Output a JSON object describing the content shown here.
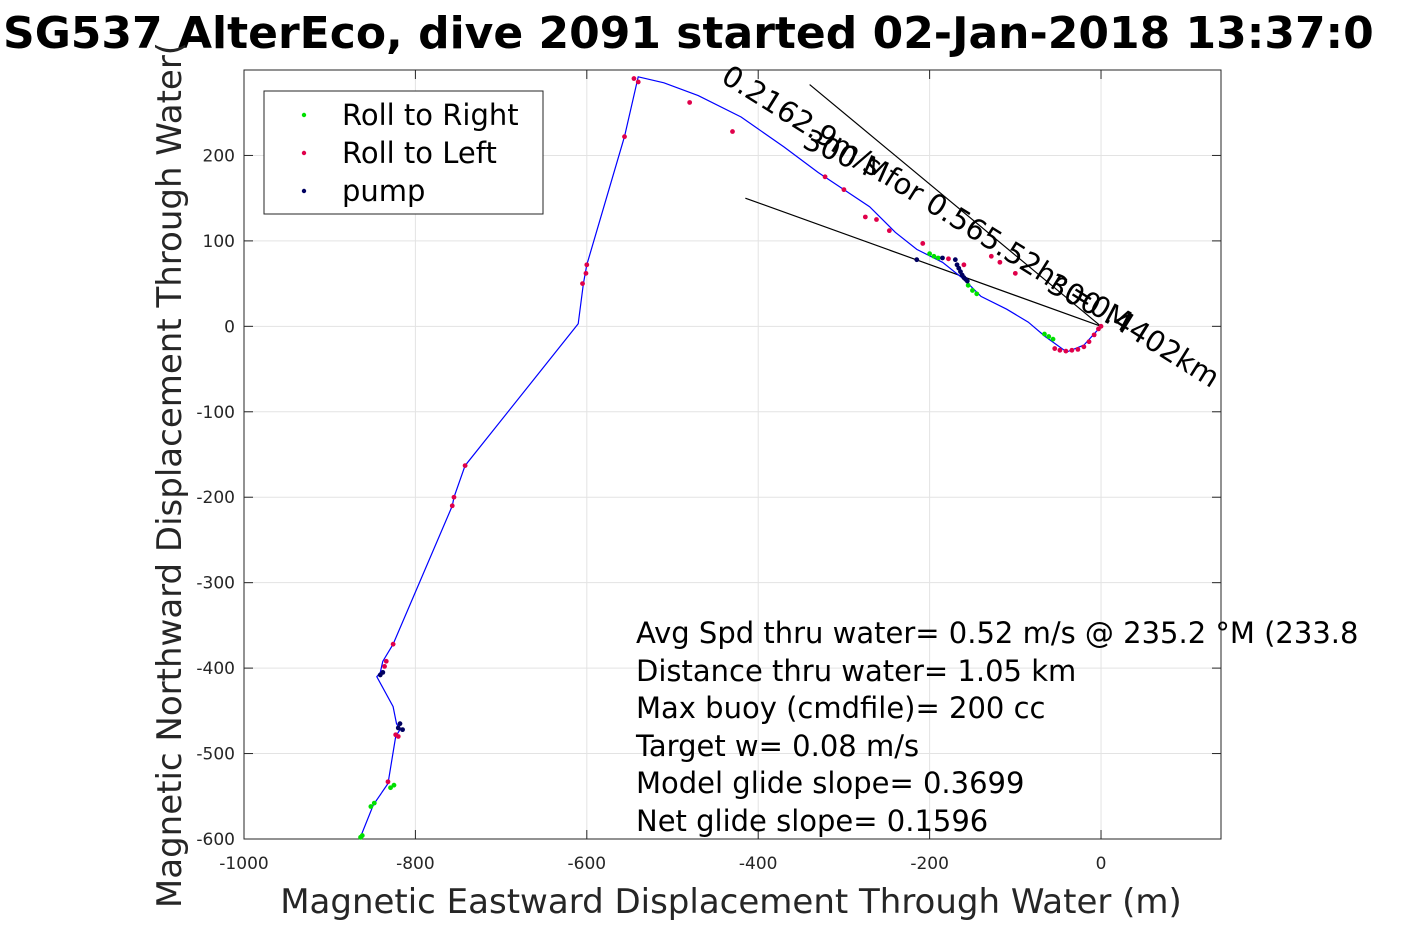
{
  "chart_data": {
    "type": "scatter",
    "title": "SG537 AlterEco, dive 2091 started 02-Jan-2018 13:37:0",
    "xlabel": "Magnetic Eastward Displacement Through Water (m)",
    "ylabel": "Magnetic Northward Displacement Through Water(",
    "xlim": [
      -1000,
      140
    ],
    "ylim": [
      -600,
      300
    ],
    "xticks": [
      -1000,
      -800,
      -600,
      -400,
      -200,
      0
    ],
    "yticks": [
      -600,
      -500,
      -400,
      -300,
      -200,
      -100,
      0,
      100,
      200
    ],
    "grid": true,
    "legend_position": "top-left",
    "legend": [
      "Roll to Right",
      "Roll to Left",
      "pump"
    ],
    "colors": {
      "track": "#0000ff",
      "roll_right": "#00e000",
      "roll_left": "#e0004a",
      "pump": "#000060"
    },
    "track": {
      "x": [
        0,
        -20,
        -40,
        -65,
        -85,
        -110,
        -140,
        -160,
        -185,
        -215,
        -240,
        -270,
        -300,
        -330,
        -370,
        -420,
        -470,
        -510,
        -540,
        -556,
        -600,
        -604,
        -610,
        -742,
        -755,
        -757,
        -826,
        -838,
        -841,
        -845,
        -826,
        -822,
        -818,
        -823,
        -832,
        -849,
        -865
      ],
      "y": [
        0,
        -22,
        -30,
        -12,
        5,
        20,
        35,
        55,
        75,
        90,
        110,
        140,
        160,
        180,
        210,
        245,
        270,
        285,
        292,
        222,
        72,
        50,
        3,
        -163,
        -200,
        -210,
        -372,
        -392,
        -405,
        -410,
        -445,
        -465,
        -472,
        -480,
        -535,
        -560,
        -600
      ]
    },
    "series": [
      {
        "name": "Roll to Right",
        "x": [
          -66,
          -61,
          -56,
          -155,
          -150,
          -145,
          -200,
          -195,
          -190,
          -825,
          -829,
          -848,
          -852,
          -862,
          -864
        ],
        "y": [
          -9,
          -12,
          -15,
          48,
          42,
          38,
          85,
          82,
          80,
          -537,
          -540,
          -558,
          -562,
          -596,
          -598
        ]
      },
      {
        "name": "Roll to Left",
        "x": [
          0,
          -3,
          -8,
          -14,
          -20,
          -27,
          -34,
          -41,
          -48,
          -54,
          -100,
          -118,
          -128,
          -160,
          -178,
          -208,
          -247,
          -262,
          -275,
          -300,
          -322,
          -430,
          -480,
          -540,
          -545,
          -556,
          -600,
          -601,
          -605,
          -742,
          -755,
          -757,
          -826,
          -834,
          -836,
          -820,
          -823,
          -832
        ],
        "y": [
          0,
          -3,
          -10,
          -18,
          -24,
          -27,
          -28,
          -29,
          -28,
          -26,
          62,
          75,
          82,
          72,
          79,
          97,
          112,
          125,
          128,
          160,
          175,
          228,
          262,
          286,
          290,
          222,
          72,
          62,
          50,
          -163,
          -200,
          -210,
          -372,
          -392,
          -398,
          -480,
          -478,
          -533
        ]
      },
      {
        "name": "pump",
        "x": [
          -170,
          -168,
          -166,
          -164,
          -162,
          -160,
          -158,
          -156,
          -185,
          -215,
          -838,
          -841,
          -818,
          -815,
          -820
        ],
        "y": [
          78,
          72,
          68,
          64,
          60,
          57,
          55,
          53,
          80,
          78,
          -405,
          -408,
          -465,
          -472,
          -470
        ]
      }
    ],
    "reference_lines": [
      {
        "x": [
          0,
          -340
        ],
        "y": [
          0,
          283
        ]
      },
      {
        "x": [
          0,
          -415
        ],
        "y": [
          0,
          150
        ]
      }
    ],
    "rotated_labels": [
      {
        "text": "0.2162.9m/s for 0.565.52hr =0.4402km",
        "x": -445,
        "y": 287,
        "angle": 32
      },
      {
        "text": "300 M",
        "x": -350,
        "y": 210,
        "angle": 24
      },
      {
        "text": "300 M",
        "x": -65,
        "y": 42,
        "angle": 28
      }
    ],
    "annotations": [
      "Avg Spd thru water=  0.52 m/s @ 235.2 °M (233.8",
      "Distance thru water=  1.05 km",
      "Max buoy (cmdfile)= 200 cc",
      "Target w= 0.08 m/s",
      "Model glide slope= 0.3699",
      "Net glide slope= 0.1596"
    ]
  }
}
